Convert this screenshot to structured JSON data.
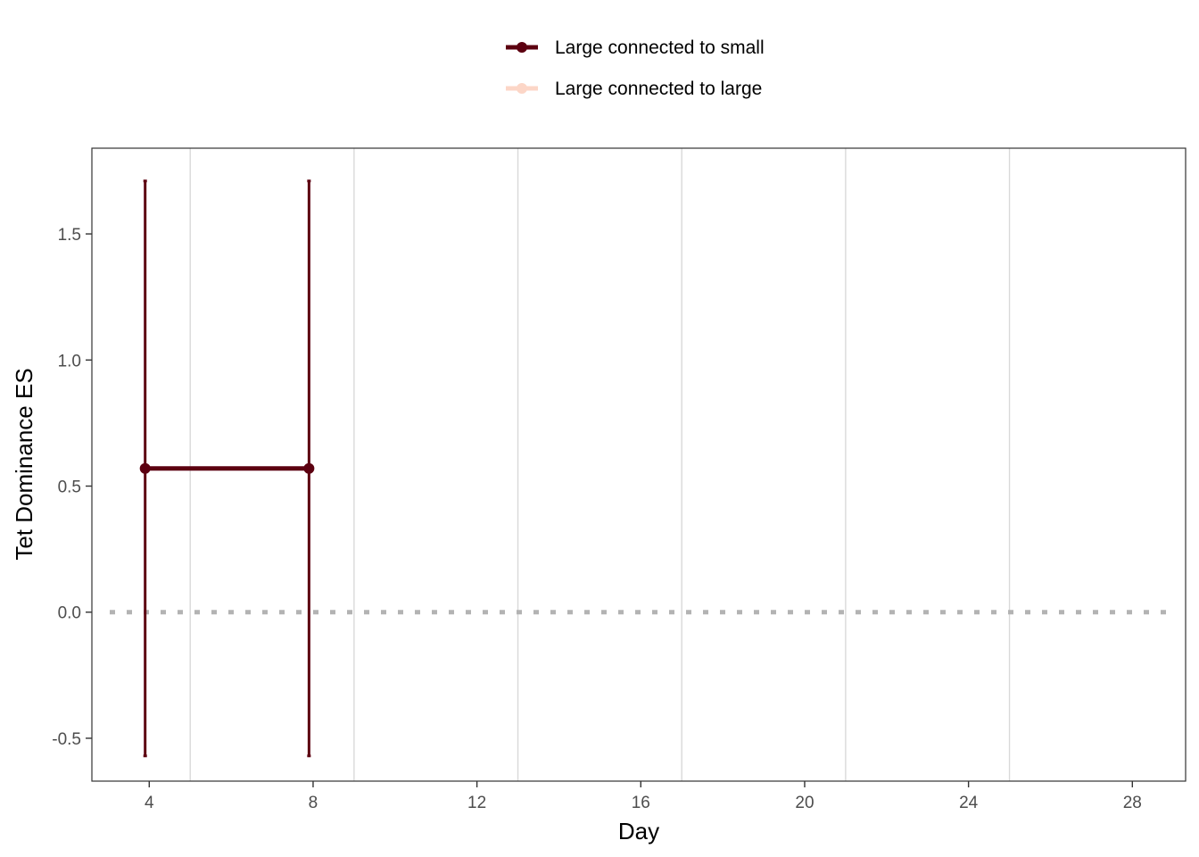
{
  "chart_data": {
    "type": "line",
    "title": "",
    "xlabel": "Day",
    "ylabel": "Tet Dominance ES",
    "xlim": [
      2.6,
      29.3
    ],
    "ylim": [
      -0.67,
      1.84
    ],
    "x_ticks": [
      4,
      8,
      12,
      16,
      20,
      24,
      28
    ],
    "x_tick_labels": [
      "4",
      "8",
      "12",
      "16",
      "20",
      "24",
      "28"
    ],
    "y_ticks": [
      -0.5,
      0.0,
      0.5,
      1.0,
      1.5
    ],
    "y_tick_labels": [
      "-0.5",
      "0.0",
      "0.5",
      "1.0",
      "1.5"
    ],
    "vertical_grid_at": [
      5,
      9,
      13,
      17,
      21,
      25
    ],
    "reference_line": {
      "y": 0,
      "style": "dotted",
      "color": "#b3b3b3"
    },
    "legend_position": "top-center",
    "series": [
      {
        "name": "Large connected to small",
        "color": "#5c0010",
        "x": [
          3.9,
          7.9
        ],
        "y": [
          0.57,
          0.57
        ],
        "ymin": [
          -0.57,
          -0.57
        ],
        "ymax": [
          1.71,
          1.71
        ]
      },
      {
        "name": "Large connected to large",
        "color": "#fcd6c7",
        "x": [],
        "y": [],
        "ymin": [],
        "ymax": []
      }
    ]
  }
}
